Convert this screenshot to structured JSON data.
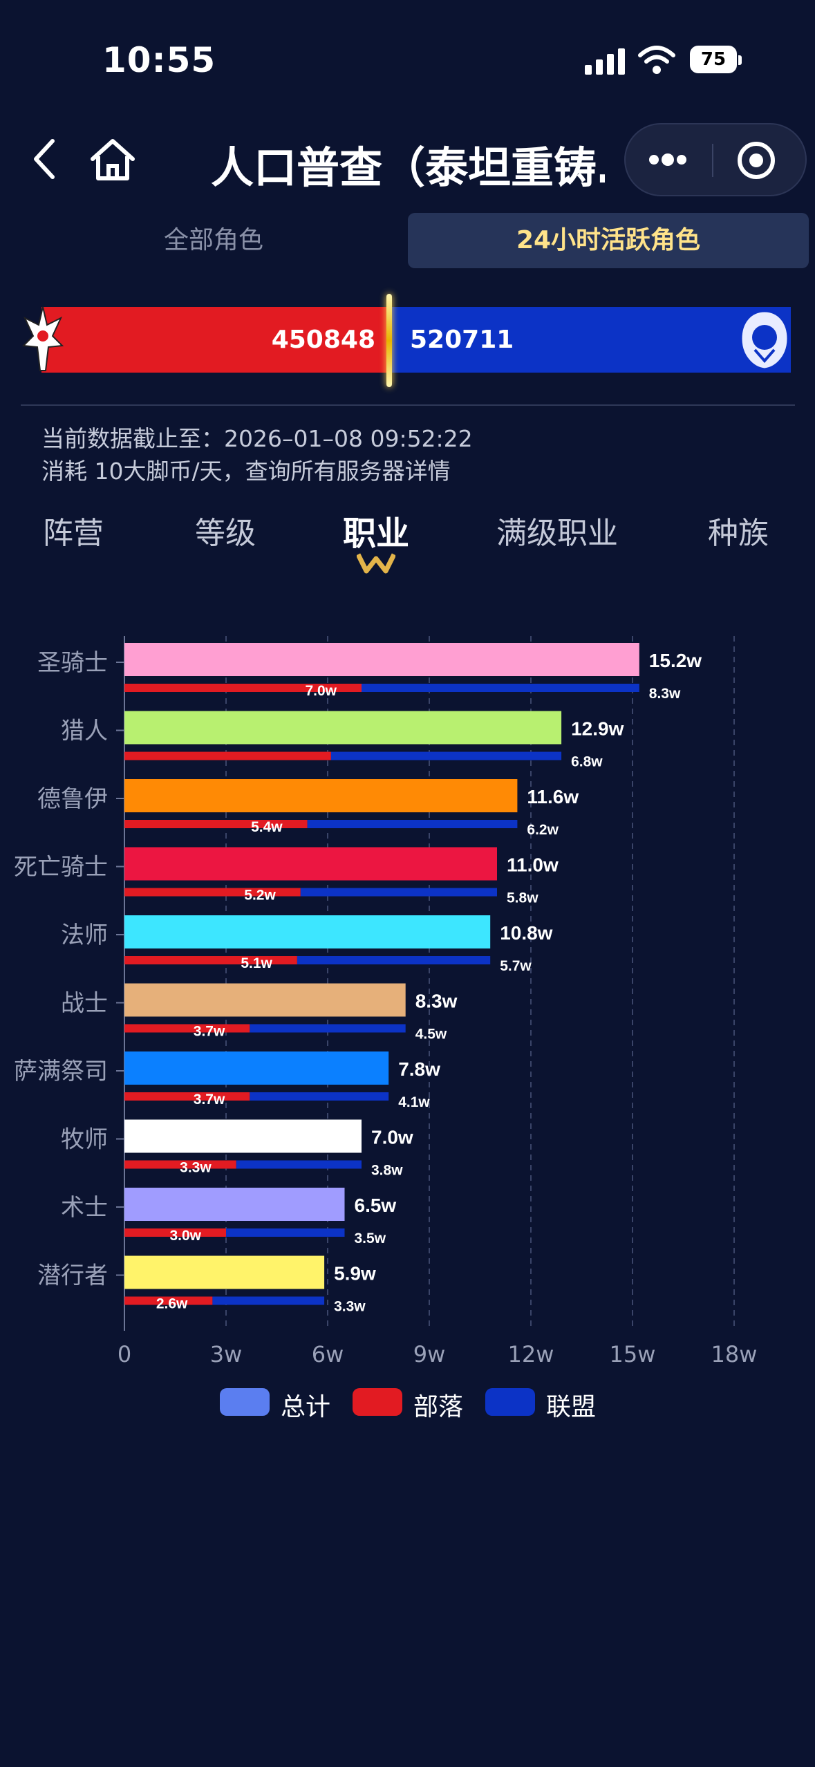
{
  "status_bar": {
    "time": "10:55",
    "battery": "75"
  },
  "nav": {
    "title": "人口普查（泰坦重铸…"
  },
  "tabs": {
    "all": "全部角色",
    "active24h": "24小时活跃角色"
  },
  "faction": {
    "horde_count": "450848",
    "alliance_count": "520711",
    "horde_ratio": 0.464
  },
  "info": {
    "line1": "当前数据截止至：2026–01–08 09:52:22",
    "line2": "消耗 10大脚币/天，查询所有服务器详情"
  },
  "subtabs": {
    "camp": "阵营",
    "level": "等级",
    "job": "职业",
    "maxjob": "满级职业",
    "race": "种族"
  },
  "legend": {
    "total": "总计",
    "horde": "部落",
    "alliance": "联盟"
  },
  "colors": {
    "horde": "#e21b22",
    "alliance": "#0c33c6",
    "total_legend": "#5b7ef0",
    "active_tab_text": "#ffe38a"
  },
  "chart_data": {
    "type": "bar",
    "orientation": "horizontal",
    "x_ticks": [
      "0",
      "3w",
      "6w",
      "9w",
      "12w",
      "15w",
      "18w"
    ],
    "xlim": [
      0,
      18
    ],
    "unit": "w",
    "categories": [
      "圣骑士",
      "猎人",
      "德鲁伊",
      "死亡骑士",
      "法师",
      "战士",
      "萨满祭司",
      "牧师",
      "术士",
      "潜行者"
    ],
    "series": [
      {
        "name": "总计",
        "values": [
          15.2,
          12.9,
          11.6,
          11.0,
          10.8,
          8.3,
          7.8,
          7.0,
          6.5,
          5.9
        ],
        "labels": [
          "15.2w",
          "12.9w",
          "11.6w",
          "11.0w",
          "10.8w",
          "8.3w",
          "7.8w",
          "7.0w",
          "6.5w",
          "5.9w"
        ],
        "colors": [
          "#ff9fd2",
          "#b8f070",
          "#ff8a05",
          "#ec1641",
          "#3de6ff",
          "#e6b07a",
          "#0b80ff",
          "#ffffff",
          "#a09cff",
          "#fff36a"
        ]
      },
      {
        "name": "部落",
        "values": [
          7.0,
          6.1,
          5.4,
          5.2,
          5.1,
          3.7,
          3.7,
          3.3,
          3.0,
          2.6
        ],
        "labels": [
          "7.0w",
          "",
          "5.4w",
          "5.2w",
          "5.1w",
          "3.7w",
          "3.7w",
          "3.3w",
          "3.0w",
          "2.6w"
        ]
      },
      {
        "name": "联盟",
        "values": [
          8.3,
          6.8,
          6.2,
          5.8,
          5.7,
          4.5,
          4.1,
          3.8,
          3.5,
          3.3
        ],
        "labels": [
          "8.3w",
          "6.8w",
          "6.2w",
          "5.8w",
          "5.7w",
          "4.5w",
          "4.1w",
          "3.8w",
          "3.5w",
          "3.3w"
        ]
      }
    ]
  }
}
